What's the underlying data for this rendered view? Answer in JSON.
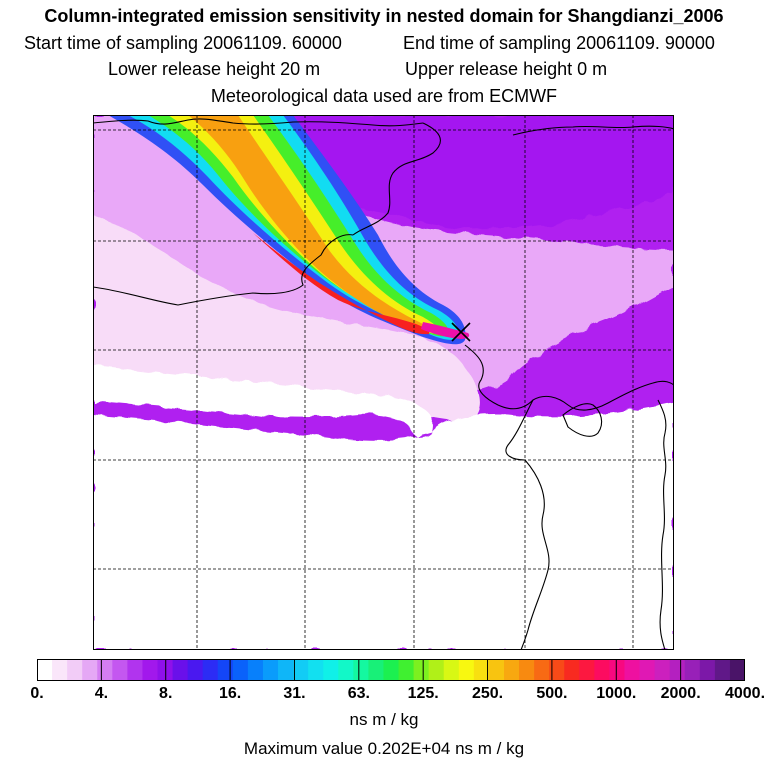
{
  "header": {
    "title": "Column-integrated emission sensitivity in nested domain for Shangdianzi_2006",
    "start_label": "Start time of sampling 20061109. 60000",
    "end_label": "End time of sampling 20061109. 90000",
    "lower_label": "Lower release height   20 m",
    "upper_label": "Upper release height    0 m",
    "met_label": "Meteorological data used are from ECMWF"
  },
  "colorbar": {
    "ticks": [
      "0.",
      "4.",
      "8.",
      "16.",
      "31.",
      "63.",
      "125.",
      "250.",
      "500.",
      "1000.",
      "2000.",
      "4000."
    ],
    "colors": [
      "#ffffff",
      "#fae6fa",
      "#f2ccf7",
      "#e5a8f5",
      "#d47ef2",
      "#c457f0",
      "#b134ee",
      "#a218ec",
      "#8f10ea",
      "#6a10ea",
      "#4a18f0",
      "#2c2cf5",
      "#1446f8",
      "#0a62fa",
      "#0880fb",
      "#0a9cfb",
      "#0fb6f8",
      "#12ccf5",
      "#12e0f0",
      "#10f0e8",
      "#12f8c8",
      "#14f8a0",
      "#18f078",
      "#1cf050",
      "#40f030",
      "#7cf020",
      "#b0f018",
      "#d8f814",
      "#f8f810",
      "#f8e010",
      "#f8c410",
      "#f8a810",
      "#f88a10",
      "#f86a14",
      "#f84a18",
      "#f82a20",
      "#fc1840",
      "#fc0c60",
      "#f80880",
      "#ee10a0",
      "#e018b4",
      "#cc20be",
      "#b420c0",
      "#9820b8",
      "#7c18a8",
      "#601888",
      "#4a1468"
    ],
    "units": "ns m / kg",
    "max_label": "Maximum value  0.202E+04 ns m / kg"
  },
  "map": {
    "receptor": "Shangdianzi",
    "background_color": "#b020f0",
    "colors": {
      "violet": "#a418f0",
      "light_purple": "#e9a8f8",
      "pale_pink": "#f8dcf8",
      "blue": "#3050f5",
      "cyan": "#12dcf2",
      "green": "#46ee2a",
      "yellow": "#f4f010",
      "orange": "#f8a010",
      "red": "#f82020",
      "magenta": "#ee10a8",
      "marker": "#000000",
      "coast": "#000000",
      "grid": "#000000"
    }
  }
}
